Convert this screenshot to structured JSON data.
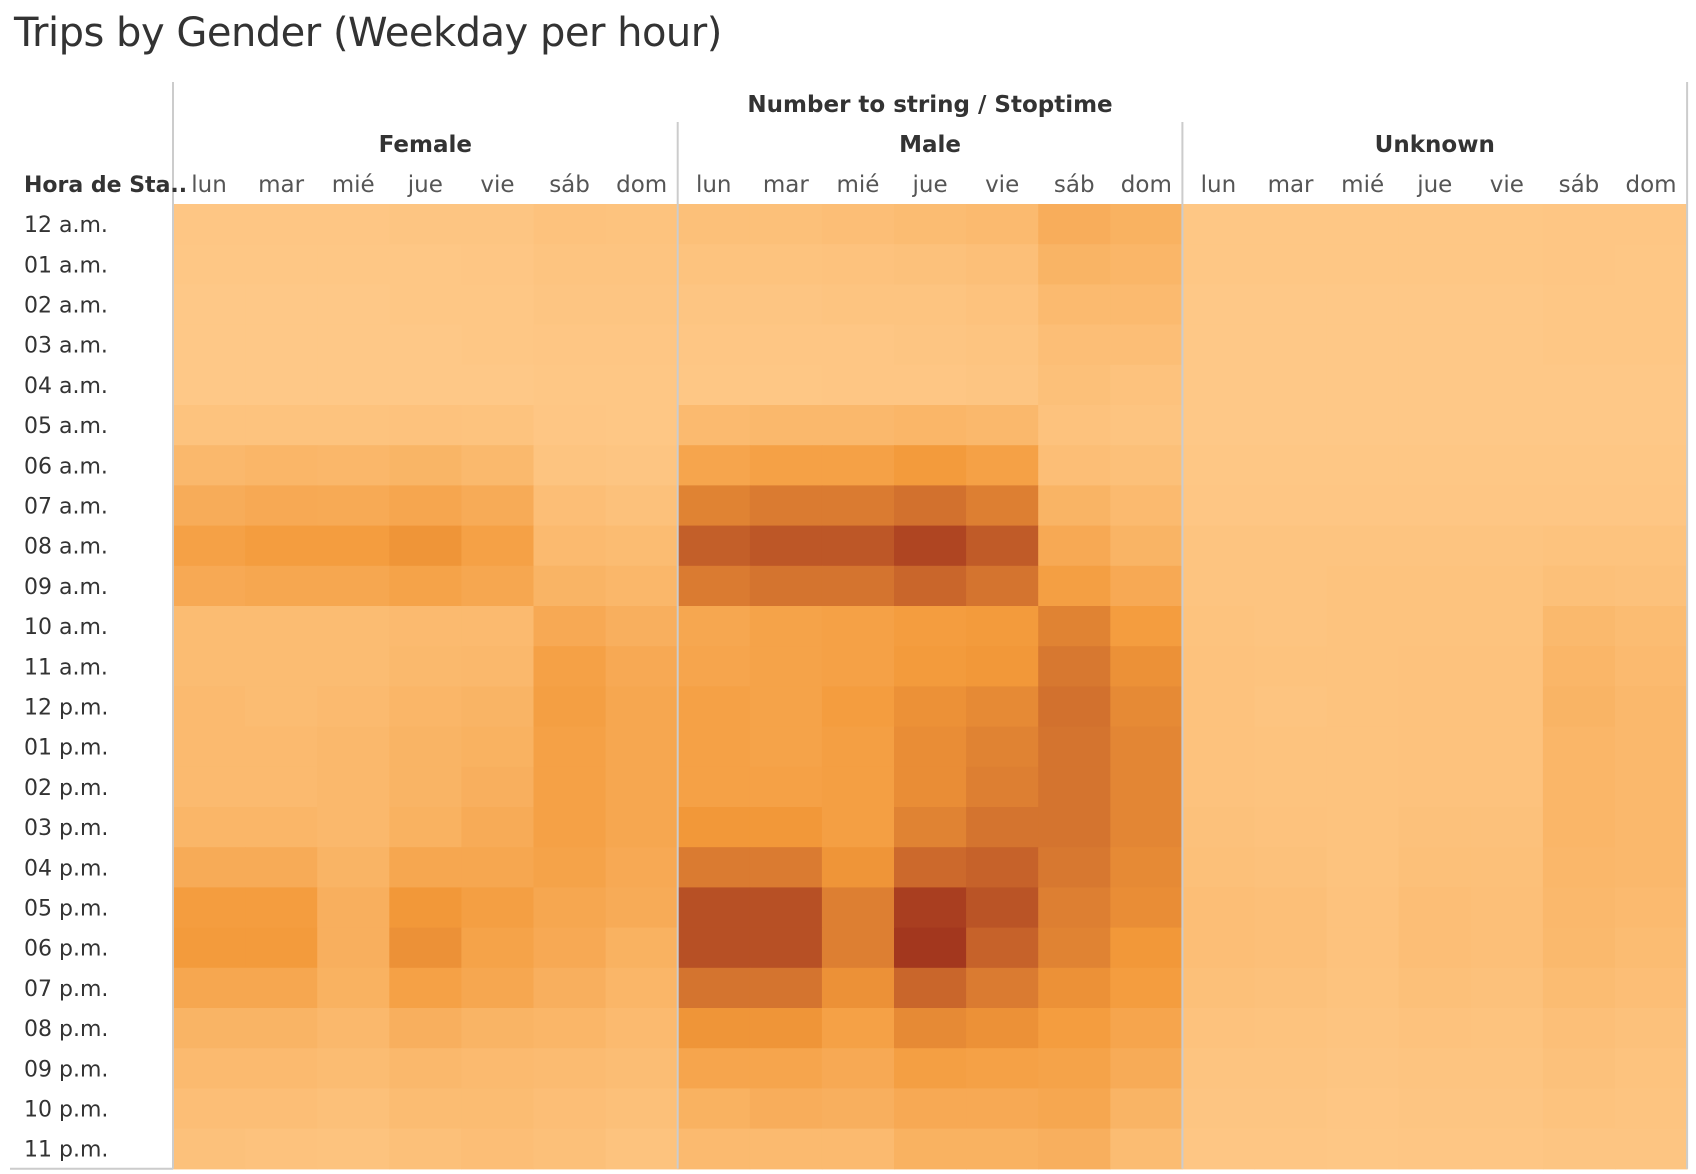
{
  "title": "Trips by Gender (Weekday per hour)",
  "super_header": "Number to string  /  Stoptime",
  "row_header": "Hora de Sta..",
  "colors": {
    "low": "#fec887",
    "mid": "#f39a3a",
    "high": "#a3371e",
    "separator": "#cccccc"
  },
  "chart_data": {
    "type": "heatmap",
    "title": "Trips by Gender (Weekday per hour)",
    "column_super_header": "Number to string  /  Stoptime",
    "row_header": "Hora de Sta..",
    "groups": [
      "Female",
      "Male",
      "Unknown"
    ],
    "days": [
      "lun",
      "mar",
      "mié",
      "jue",
      "vie",
      "sáb",
      "dom"
    ],
    "hours": [
      "12 a.m.",
      "01 a.m.",
      "02 a.m.",
      "03 a.m.",
      "04 a.m.",
      "05 a.m.",
      "06 a.m.",
      "07 a.m.",
      "08 a.m.",
      "09 a.m.",
      "10 a.m.",
      "11 a.m.",
      "12 p.m.",
      "01 p.m.",
      "02 p.m.",
      "03 p.m.",
      "04 p.m.",
      "05 p.m.",
      "06 p.m.",
      "07 p.m.",
      "08 p.m.",
      "09 p.m.",
      "10 p.m.",
      "11 p.m."
    ],
    "value_scale": "relative intensity 0-100",
    "values": {
      "Female": [
        [
          2,
          2,
          2,
          3,
          3,
          6,
          5
        ],
        [
          1,
          1,
          1,
          1,
          2,
          4,
          4
        ],
        [
          0,
          0,
          0,
          1,
          1,
          3,
          3
        ],
        [
          0,
          0,
          0,
          0,
          1,
          2,
          2
        ],
        [
          0,
          0,
          0,
          0,
          0,
          1,
          1
        ],
        [
          5,
          5,
          5,
          6,
          5,
          2,
          1
        ],
        [
          16,
          18,
          17,
          19,
          15,
          4,
          3
        ],
        [
          27,
          30,
          29,
          33,
          28,
          10,
          7
        ],
        [
          38,
          42,
          42,
          48,
          38,
          14,
          12
        ],
        [
          30,
          32,
          32,
          36,
          32,
          20,
          17
        ],
        [
          12,
          12,
          12,
          14,
          14,
          30,
          24
        ],
        [
          12,
          12,
          12,
          15,
          16,
          38,
          30
        ],
        [
          14,
          12,
          14,
          18,
          20,
          40,
          32
        ],
        [
          14,
          14,
          16,
          20,
          22,
          38,
          32
        ],
        [
          14,
          14,
          16,
          20,
          24,
          38,
          32
        ],
        [
          18,
          18,
          16,
          22,
          28,
          38,
          32
        ],
        [
          28,
          28,
          20,
          32,
          32,
          36,
          30
        ],
        [
          42,
          42,
          24,
          46,
          40,
          32,
          28
        ],
        [
          44,
          44,
          24,
          50,
          36,
          30,
          22
        ],
        [
          32,
          32,
          22,
          38,
          32,
          24,
          18
        ],
        [
          20,
          20,
          16,
          24,
          20,
          18,
          14
        ],
        [
          14,
          14,
          12,
          16,
          14,
          13,
          11
        ],
        [
          10,
          10,
          8,
          12,
          12,
          10,
          8
        ],
        [
          7,
          6,
          5,
          8,
          10,
          8,
          5
        ]
      ],
      "Male": [
        [
          8,
          8,
          10,
          12,
          14,
          26,
          22
        ],
        [
          5,
          5,
          6,
          7,
          9,
          20,
          18
        ],
        [
          3,
          3,
          4,
          4,
          6,
          14,
          14
        ],
        [
          2,
          2,
          2,
          3,
          4,
          10,
          10
        ],
        [
          1,
          1,
          2,
          2,
          3,
          8,
          6
        ],
        [
          14,
          16,
          16,
          18,
          16,
          6,
          4
        ],
        [
          34,
          38,
          38,
          44,
          38,
          10,
          8
        ],
        [
          58,
          62,
          62,
          68,
          60,
          20,
          14
        ],
        [
          78,
          82,
          82,
          92,
          80,
          30,
          20
        ],
        [
          62,
          66,
          66,
          74,
          66,
          40,
          30
        ],
        [
          32,
          36,
          38,
          42,
          44,
          58,
          42
        ],
        [
          34,
          36,
          38,
          44,
          46,
          64,
          50
        ],
        [
          38,
          36,
          42,
          50,
          54,
          68,
          54
        ],
        [
          38,
          36,
          40,
          52,
          58,
          66,
          56
        ],
        [
          38,
          38,
          40,
          52,
          60,
          66,
          56
        ],
        [
          46,
          46,
          40,
          58,
          66,
          66,
          56
        ],
        [
          62,
          62,
          48,
          72,
          76,
          64,
          54
        ],
        [
          86,
          86,
          60,
          96,
          84,
          60,
          52
        ],
        [
          86,
          86,
          60,
          100,
          76,
          58,
          46
        ],
        [
          66,
          66,
          50,
          74,
          62,
          50,
          42
        ],
        [
          48,
          48,
          38,
          54,
          50,
          42,
          34
        ],
        [
          34,
          34,
          30,
          40,
          38,
          36,
          28
        ],
        [
          22,
          26,
          24,
          30,
          30,
          32,
          20
        ],
        [
          14,
          14,
          14,
          22,
          22,
          24,
          12
        ]
      ],
      "Unknown": [
        [
          1,
          1,
          1,
          1,
          1,
          2,
          2
        ],
        [
          1,
          1,
          1,
          1,
          1,
          2,
          1
        ],
        [
          0,
          0,
          0,
          0,
          0,
          1,
          1
        ],
        [
          0,
          0,
          0,
          0,
          0,
          1,
          1
        ],
        [
          0,
          0,
          0,
          0,
          0,
          0,
          0
        ],
        [
          0,
          0,
          0,
          0,
          0,
          0,
          0
        ],
        [
          1,
          1,
          1,
          1,
          1,
          1,
          1
        ],
        [
          2,
          2,
          2,
          2,
          2,
          2,
          2
        ],
        [
          4,
          4,
          4,
          4,
          4,
          5,
          5
        ],
        [
          4,
          4,
          5,
          5,
          5,
          8,
          7
        ],
        [
          5,
          4,
          5,
          5,
          5,
          15,
          12
        ],
        [
          6,
          5,
          5,
          6,
          6,
          18,
          14
        ],
        [
          6,
          4,
          5,
          6,
          6,
          20,
          16
        ],
        [
          6,
          5,
          5,
          6,
          6,
          18,
          16
        ],
        [
          6,
          5,
          5,
          6,
          6,
          18,
          16
        ],
        [
          7,
          6,
          5,
          7,
          7,
          18,
          16
        ],
        [
          8,
          7,
          5,
          8,
          8,
          17,
          16
        ],
        [
          10,
          9,
          6,
          10,
          9,
          16,
          14
        ],
        [
          10,
          9,
          6,
          10,
          9,
          15,
          12
        ],
        [
          8,
          7,
          5,
          8,
          7,
          12,
          10
        ],
        [
          6,
          5,
          4,
          6,
          5,
          9,
          7
        ],
        [
          4,
          4,
          3,
          4,
          4,
          7,
          5
        ],
        [
          3,
          3,
          2,
          3,
          3,
          5,
          4
        ],
        [
          2,
          2,
          1,
          2,
          2,
          3,
          3
        ]
      ]
    }
  }
}
